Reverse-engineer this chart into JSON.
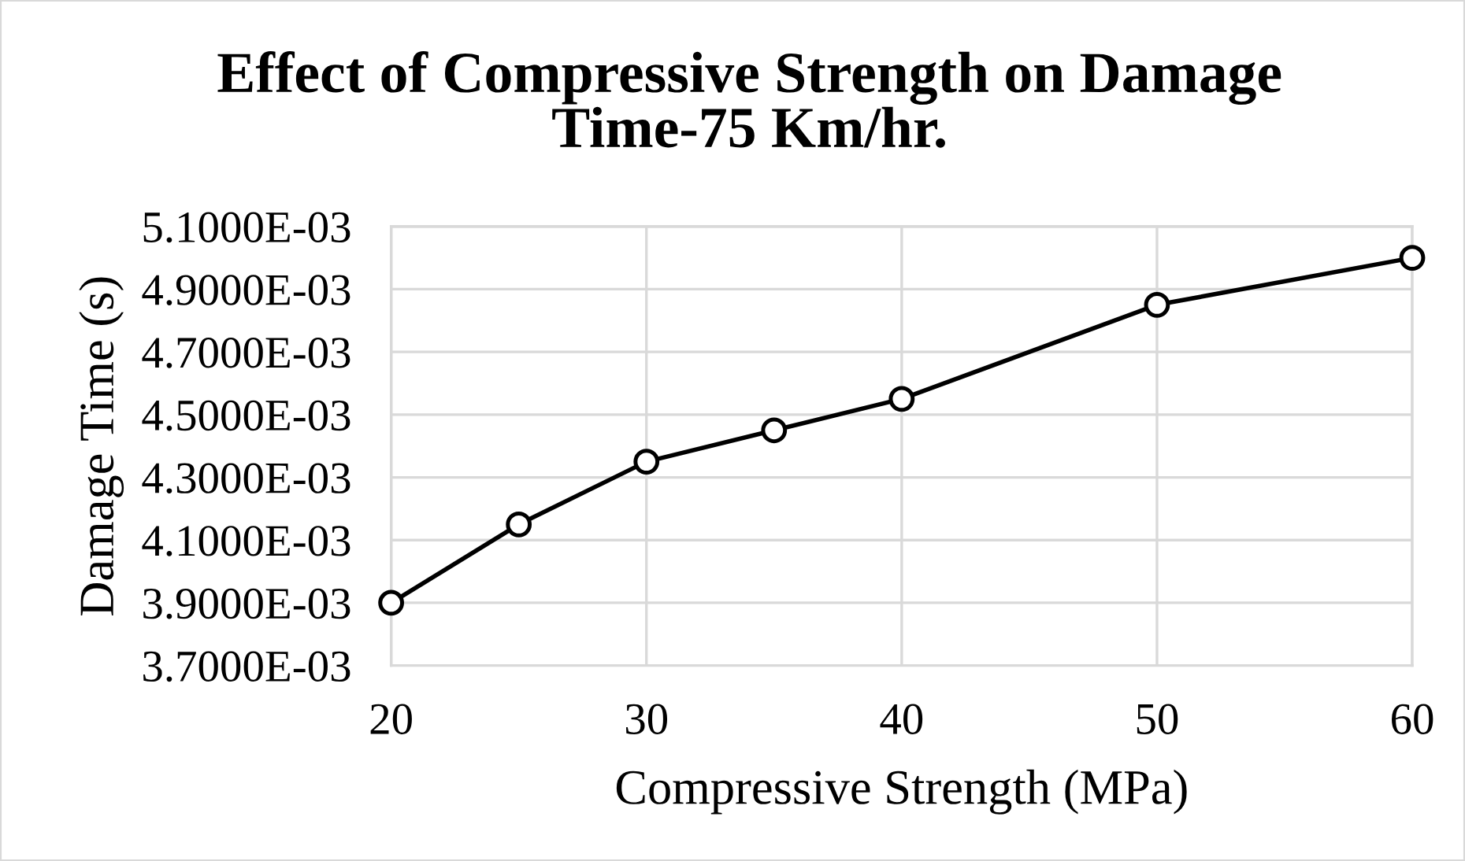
{
  "chart_data": {
    "type": "line",
    "title": "Effect of Compressive Strength on Damage\nTime-75 Km/hr.",
    "xlabel": "Compressive Strength (MPa)",
    "ylabel": "Damage Time (s)",
    "x": [
      20,
      25,
      30,
      35,
      40,
      50,
      60
    ],
    "series": [
      {
        "color": "#000000",
        "values": [
          0.0039,
          0.00415,
          0.00435,
          0.00445,
          0.00455,
          0.00485,
          0.005
        ]
      }
    ],
    "xlim": [
      20,
      60
    ],
    "xticks": [
      20,
      30,
      40,
      50,
      60
    ],
    "ylim": [
      0.0037,
      0.0051
    ],
    "yticks": [
      {
        "value": 0.0037,
        "label": "3.7000E-03"
      },
      {
        "value": 0.0039,
        "label": "3.9000E-03"
      },
      {
        "value": 0.0041,
        "label": "4.1000E-03"
      },
      {
        "value": 0.0043,
        "label": "4.3000E-03"
      },
      {
        "value": 0.0045,
        "label": "4.5000E-03"
      },
      {
        "value": 0.0047,
        "label": "4.7000E-03"
      },
      {
        "value": 0.0049,
        "label": "4.9000E-03"
      },
      {
        "value": 0.0051,
        "label": "5.1000E-03"
      }
    ],
    "grid": true,
    "marker": "circle",
    "line_style": "solid"
  }
}
